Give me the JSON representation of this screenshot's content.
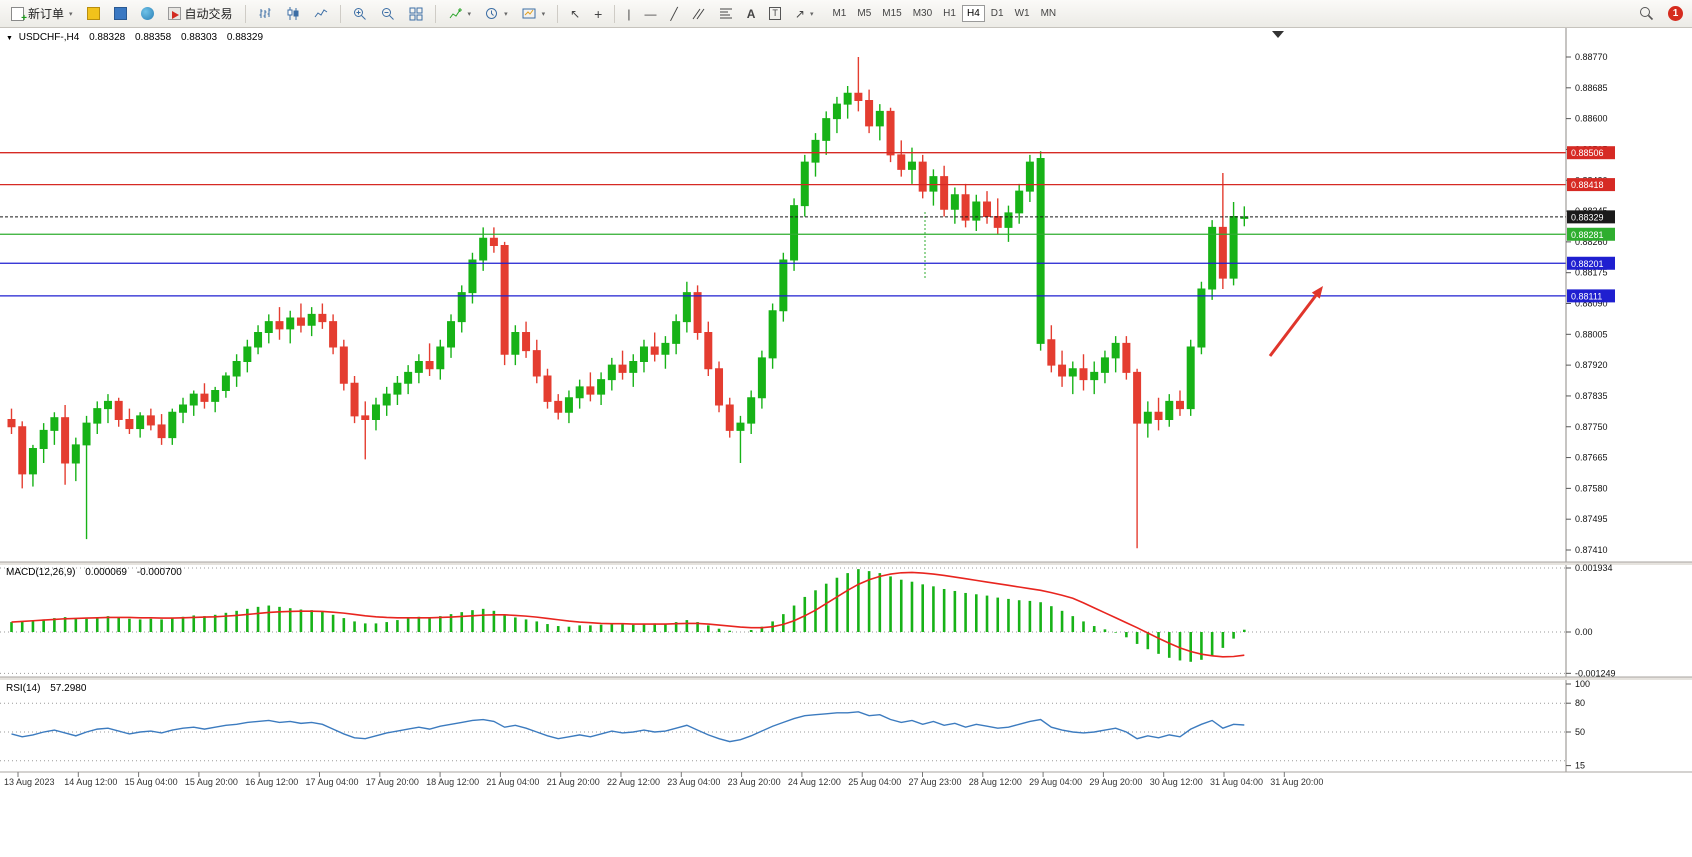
{
  "toolbar": {
    "new_order": {
      "label": "新订单"
    },
    "autotrade": {
      "label": "自动交易"
    },
    "timeframes": {
      "items": [
        "M1",
        "M5",
        "M15",
        "M30",
        "H1",
        "H4",
        "D1",
        "W1",
        "MN"
      ],
      "active": "H4"
    },
    "notification_count": "1"
  },
  "chart_header": {
    "symbol": "USDCHF-,H4",
    "open": "0.88328",
    "high": "0.88358",
    "low": "0.88303",
    "close": "0.88329"
  },
  "price_scale": {
    "ticks": [
      "0.88770",
      "0.88685",
      "0.88600",
      "0.88515",
      "0.88430",
      "0.88345",
      "0.88260",
      "0.88175",
      "0.88090",
      "0.88005",
      "0.87920",
      "0.87835",
      "0.87750",
      "0.87665",
      "0.87580",
      "0.87495",
      "0.87410"
    ]
  },
  "levels": [
    {
      "price": 0.88506,
      "label": "0.88506",
      "color": "#d62a24",
      "kind": "resistance"
    },
    {
      "price": 0.88418,
      "label": "0.88418",
      "color": "#d62a24",
      "kind": "resistance"
    },
    {
      "price": 0.88329,
      "label": "0.88329",
      "color": "#1a1a1a",
      "kind": "current-price"
    },
    {
      "price": 0.88281,
      "label": "0.88281",
      "color": "#2fae2f",
      "kind": "support"
    },
    {
      "price": 0.88201,
      "label": "0.88201",
      "color": "#1f1fd0",
      "kind": "support"
    },
    {
      "price": 0.88111,
      "label": "0.88111",
      "color": "#1f1fd0",
      "kind": "support"
    }
  ],
  "annotation_arrow": {
    "type": "arrow",
    "direction": "up-right",
    "color": "#e0352b"
  },
  "chart_data": {
    "type": "candlestick",
    "symbol": "USDCHF",
    "period": "H4",
    "y_range": [
      0.8741,
      0.8877
    ],
    "up_color": "#17b217",
    "down_color": "#e43d30",
    "x_labels": [
      "13 Aug 2023",
      "14 Aug 12:00",
      "15 Aug 04:00",
      "15 Aug 20:00",
      "16 Aug 12:00",
      "17 Aug 04:00",
      "17 Aug 20:00",
      "18 Aug 12:00",
      "21 Aug 04:00",
      "21 Aug 20:00",
      "22 Aug 12:00",
      "23 Aug 04:00",
      "23 Aug 20:00",
      "24 Aug 12:00",
      "25 Aug 04:00",
      "27 Aug 23:00",
      "28 Aug 12:00",
      "29 Aug 04:00",
      "29 Aug 20:00",
      "30 Aug 12:00",
      "31 Aug 04:00",
      "31 Aug 20:00"
    ],
    "candles": [
      [
        0.8777,
        0.878,
        0.8773,
        0.8775
      ],
      [
        0.8775,
        0.87765,
        0.8758,
        0.8762
      ],
      [
        0.8762,
        0.877,
        0.87585,
        0.8769
      ],
      [
        0.8769,
        0.8776,
        0.8765,
        0.8774
      ],
      [
        0.8774,
        0.8779,
        0.877,
        0.87775
      ],
      [
        0.87775,
        0.8781,
        0.8759,
        0.8765
      ],
      [
        0.8765,
        0.8772,
        0.876,
        0.877
      ],
      [
        0.877,
        0.8778,
        0.8744,
        0.8776
      ],
      [
        0.8776,
        0.8782,
        0.8773,
        0.878
      ],
      [
        0.878,
        0.8784,
        0.8776,
        0.8782
      ],
      [
        0.8782,
        0.8783,
        0.8775,
        0.8777
      ],
      [
        0.8777,
        0.878,
        0.8773,
        0.87745
      ],
      [
        0.87745,
        0.8779,
        0.8772,
        0.8778
      ],
      [
        0.8778,
        0.878,
        0.8774,
        0.87755
      ],
      [
        0.87755,
        0.87785,
        0.877,
        0.8772
      ],
      [
        0.8772,
        0.878,
        0.877,
        0.8779
      ],
      [
        0.8779,
        0.8783,
        0.8776,
        0.8781
      ],
      [
        0.8781,
        0.8785,
        0.8778,
        0.8784
      ],
      [
        0.8784,
        0.8787,
        0.878,
        0.8782
      ],
      [
        0.8782,
        0.8786,
        0.8779,
        0.8785
      ],
      [
        0.8785,
        0.879,
        0.8783,
        0.8789
      ],
      [
        0.8789,
        0.8795,
        0.8786,
        0.8793
      ],
      [
        0.8793,
        0.8799,
        0.879,
        0.8797
      ],
      [
        0.8797,
        0.8803,
        0.8795,
        0.8801
      ],
      [
        0.8801,
        0.8806,
        0.8798,
        0.8804
      ],
      [
        0.8804,
        0.8808,
        0.8799,
        0.8802
      ],
      [
        0.8802,
        0.8807,
        0.8798,
        0.8805
      ],
      [
        0.8805,
        0.8809,
        0.8801,
        0.8803
      ],
      [
        0.8803,
        0.8808,
        0.88,
        0.8806
      ],
      [
        0.8806,
        0.8809,
        0.8802,
        0.8804
      ],
      [
        0.8804,
        0.8806,
        0.8795,
        0.8797
      ],
      [
        0.8797,
        0.8799,
        0.8785,
        0.8787
      ],
      [
        0.8787,
        0.8789,
        0.8776,
        0.8778
      ],
      [
        0.8778,
        0.8782,
        0.8766,
        0.8777
      ],
      [
        0.8777,
        0.8783,
        0.8774,
        0.8781
      ],
      [
        0.8781,
        0.8786,
        0.8778,
        0.8784
      ],
      [
        0.8784,
        0.8789,
        0.8781,
        0.8787
      ],
      [
        0.8787,
        0.8792,
        0.8784,
        0.879
      ],
      [
        0.879,
        0.8795,
        0.8787,
        0.8793
      ],
      [
        0.8793,
        0.8798,
        0.8789,
        0.8791
      ],
      [
        0.8791,
        0.8799,
        0.8788,
        0.8797
      ],
      [
        0.8797,
        0.8806,
        0.8794,
        0.8804
      ],
      [
        0.8804,
        0.8814,
        0.8801,
        0.8812
      ],
      [
        0.8812,
        0.8823,
        0.8809,
        0.8821
      ],
      [
        0.8821,
        0.883,
        0.8818,
        0.8827
      ],
      [
        0.8827,
        0.883,
        0.8823,
        0.8825
      ],
      [
        0.8825,
        0.8826,
        0.8792,
        0.8795
      ],
      [
        0.8795,
        0.8803,
        0.8792,
        0.8801
      ],
      [
        0.8801,
        0.8804,
        0.8794,
        0.8796
      ],
      [
        0.8796,
        0.8799,
        0.8787,
        0.8789
      ],
      [
        0.8789,
        0.8791,
        0.878,
        0.8782
      ],
      [
        0.8782,
        0.8784,
        0.8777,
        0.8779
      ],
      [
        0.8779,
        0.8785,
        0.8776,
        0.8783
      ],
      [
        0.8783,
        0.8788,
        0.878,
        0.8786
      ],
      [
        0.8786,
        0.879,
        0.8782,
        0.8784
      ],
      [
        0.8784,
        0.879,
        0.8781,
        0.8788
      ],
      [
        0.8788,
        0.8794,
        0.8785,
        0.8792
      ],
      [
        0.8792,
        0.8796,
        0.8788,
        0.879
      ],
      [
        0.879,
        0.8795,
        0.8786,
        0.8793
      ],
      [
        0.8793,
        0.8799,
        0.879,
        0.8797
      ],
      [
        0.8797,
        0.8801,
        0.8793,
        0.8795
      ],
      [
        0.8795,
        0.88,
        0.8791,
        0.8798
      ],
      [
        0.8798,
        0.8806,
        0.8795,
        0.8804
      ],
      [
        0.8804,
        0.8815,
        0.8801,
        0.8812
      ],
      [
        0.8812,
        0.8814,
        0.8799,
        0.8801
      ],
      [
        0.8801,
        0.8804,
        0.8789,
        0.8791
      ],
      [
        0.8791,
        0.8793,
        0.8779,
        0.8781
      ],
      [
        0.8781,
        0.8783,
        0.8772,
        0.8774
      ],
      [
        0.8774,
        0.8778,
        0.8765,
        0.8776
      ],
      [
        0.8776,
        0.8785,
        0.8773,
        0.8783
      ],
      [
        0.8783,
        0.8796,
        0.878,
        0.8794
      ],
      [
        0.8794,
        0.8809,
        0.8791,
        0.8807
      ],
      [
        0.8807,
        0.8823,
        0.8804,
        0.8821
      ],
      [
        0.8821,
        0.8838,
        0.8818,
        0.8836
      ],
      [
        0.8836,
        0.885,
        0.8833,
        0.8848
      ],
      [
        0.8848,
        0.8856,
        0.8844,
        0.8854
      ],
      [
        0.8854,
        0.8862,
        0.885,
        0.886
      ],
      [
        0.886,
        0.8866,
        0.8856,
        0.8864
      ],
      [
        0.8864,
        0.8869,
        0.886,
        0.8867
      ],
      [
        0.8867,
        0.8877,
        0.8862,
        0.8865
      ],
      [
        0.8865,
        0.8868,
        0.8856,
        0.8858
      ],
      [
        0.8858,
        0.8864,
        0.8854,
        0.8862
      ],
      [
        0.8862,
        0.8863,
        0.8848,
        0.885
      ],
      [
        0.885,
        0.8854,
        0.8844,
        0.8846
      ],
      [
        0.8846,
        0.8852,
        0.8842,
        0.8848
      ],
      [
        0.8848,
        0.885,
        0.8838,
        0.884
      ],
      [
        0.884,
        0.8846,
        0.8836,
        0.8844
      ],
      [
        0.8844,
        0.8847,
        0.8833,
        0.8835
      ],
      [
        0.8835,
        0.8841,
        0.8831,
        0.8839
      ],
      [
        0.8839,
        0.8842,
        0.883,
        0.8832
      ],
      [
        0.8832,
        0.8839,
        0.8829,
        0.8837
      ],
      [
        0.8837,
        0.884,
        0.8831,
        0.8833
      ],
      [
        0.8833,
        0.8838,
        0.8828,
        0.883
      ],
      [
        0.883,
        0.8836,
        0.8826,
        0.8834
      ],
      [
        0.8834,
        0.8842,
        0.8831,
        0.884
      ],
      [
        0.884,
        0.885,
        0.8837,
        0.8848
      ],
      [
        0.8798,
        0.8851,
        0.8796,
        0.8849
      ],
      [
        0.8799,
        0.8803,
        0.879,
        0.8792
      ],
      [
        0.8792,
        0.8796,
        0.8786,
        0.8789
      ],
      [
        0.8789,
        0.8793,
        0.8784,
        0.8791
      ],
      [
        0.8791,
        0.8795,
        0.8785,
        0.8788
      ],
      [
        0.8788,
        0.8793,
        0.8784,
        0.879
      ],
      [
        0.879,
        0.8796,
        0.8787,
        0.8794
      ],
      [
        0.8794,
        0.88,
        0.879,
        0.8798
      ],
      [
        0.8798,
        0.88,
        0.8788,
        0.879
      ],
      [
        0.879,
        0.8791,
        0.87415,
        0.8776
      ],
      [
        0.8776,
        0.8782,
        0.8772,
        0.8779
      ],
      [
        0.8779,
        0.8783,
        0.8774,
        0.8777
      ],
      [
        0.8777,
        0.8784,
        0.8775,
        0.8782
      ],
      [
        0.8782,
        0.8785,
        0.8778,
        0.878
      ],
      [
        0.878,
        0.8799,
        0.8778,
        0.8797
      ],
      [
        0.8797,
        0.8815,
        0.8795,
        0.8813
      ],
      [
        0.8813,
        0.8832,
        0.881,
        0.883
      ],
      [
        0.883,
        0.8845,
        0.8813,
        0.8816
      ],
      [
        0.8816,
        0.8837,
        0.8814,
        0.8833
      ],
      [
        0.88328,
        0.88358,
        0.88303,
        0.88329
      ]
    ],
    "macd": {
      "label": "MACD(12,26,9)",
      "value_main": "0.000069",
      "value_signal": "-0.000700",
      "scale_ticks": [
        "0.001934",
        "0.00",
        "-0.001249"
      ],
      "unit": 0.0001,
      "histogram_color": "#17b217",
      "signal_color": "#e8251f",
      "histogram": [
        3.0,
        3.2,
        3.5,
        3.8,
        4.2,
        4.5,
        4.2,
        4.0,
        4.4,
        4.8,
        4.4,
        4.0,
        3.8,
        4.0,
        3.8,
        4.2,
        4.6,
        5.0,
        4.8,
        5.2,
        5.8,
        6.4,
        7.0,
        7.6,
        8.0,
        7.6,
        7.2,
        6.8,
        6.6,
        6.2,
        5.2,
        4.2,
        3.2,
        2.6,
        2.6,
        3.0,
        3.6,
        4.2,
        4.6,
        4.2,
        4.8,
        5.4,
        6.0,
        6.6,
        7.0,
        6.4,
        5.2,
        4.4,
        3.8,
        3.2,
        2.4,
        1.8,
        1.6,
        2.0,
        2.0,
        2.2,
        2.6,
        2.4,
        2.2,
        2.4,
        2.6,
        2.4,
        3.0,
        3.6,
        3.0,
        2.0,
        1.0,
        0.4,
        0.0,
        0.6,
        1.6,
        3.2,
        5.4,
        8.0,
        10.6,
        12.6,
        14.6,
        16.4,
        17.8,
        19.0,
        18.4,
        17.8,
        16.8,
        15.8,
        15.2,
        14.4,
        13.8,
        13.0,
        12.4,
        11.8,
        11.4,
        11.0,
        10.4,
        10.0,
        9.6,
        9.4,
        9.0,
        7.8,
        6.4,
        4.8,
        3.2,
        1.8,
        0.8,
        -0.2,
        -1.6,
        -3.6,
        -5.2,
        -6.6,
        -7.8,
        -8.6,
        -9.0,
        -8.4,
        -7.2,
        -4.8,
        -2.0,
        0.69
      ],
      "signal": [
        3.0,
        3.2,
        3.4,
        3.6,
        3.8,
        4.0,
        4.1,
        4.2,
        4.3,
        4.4,
        4.4,
        4.4,
        4.3,
        4.3,
        4.2,
        4.2,
        4.3,
        4.4,
        4.5,
        4.6,
        4.8,
        5.0,
        5.3,
        5.6,
        5.9,
        6.1,
        6.2,
        6.3,
        6.3,
        6.2,
        6.0,
        5.7,
        5.3,
        4.9,
        4.6,
        4.4,
        4.3,
        4.3,
        4.3,
        4.3,
        4.4,
        4.5,
        4.7,
        4.9,
        5.1,
        5.2,
        5.2,
        5.0,
        4.8,
        4.5,
        4.1,
        3.7,
        3.3,
        3.0,
        2.8,
        2.6,
        2.5,
        2.5,
        2.4,
        2.4,
        2.4,
        2.4,
        2.5,
        2.6,
        2.6,
        2.4,
        2.1,
        1.8,
        1.5,
        1.3,
        1.3,
        1.6,
        2.3,
        3.4,
        4.9,
        6.6,
        8.6,
        10.6,
        12.6,
        14.4,
        15.8,
        16.8,
        17.5,
        17.9,
        18.0,
        17.8,
        17.5,
        17.1,
        16.6,
        16.1,
        15.6,
        15.1,
        14.6,
        14.1,
        13.6,
        13.1,
        12.6,
        11.9,
        11.1,
        10.2,
        8.8,
        7.3,
        5.8,
        4.3,
        2.8,
        1.3,
        -0.3,
        -1.9,
        -3.4,
        -4.8,
        -5.9,
        -6.7,
        -7.2,
        -7.5,
        -7.4,
        -7.0
      ]
    },
    "rsi": {
      "label": "RSI(14)",
      "value": "57.2980",
      "scale_ticks": [
        "100",
        "80",
        "50",
        "15"
      ],
      "levels": [
        80,
        50,
        20
      ],
      "line_color": "#3c7bbf",
      "values": [
        48,
        45,
        47,
        50,
        52,
        49,
        46,
        50,
        53,
        54,
        51,
        48,
        50,
        51,
        49,
        52,
        54,
        55,
        53,
        55,
        57,
        58,
        60,
        61,
        62,
        60,
        61,
        59,
        60,
        58,
        53,
        48,
        44,
        43,
        46,
        49,
        51,
        53,
        55,
        53,
        56,
        58,
        60,
        62,
        63,
        61,
        55,
        57,
        54,
        50,
        46,
        43,
        45,
        47,
        45,
        48,
        51,
        49,
        50,
        52,
        50,
        51,
        54,
        57,
        52,
        47,
        43,
        40,
        42,
        46,
        51,
        56,
        60,
        64,
        67,
        68,
        69,
        70,
        70,
        71,
        67,
        68,
        63,
        60,
        62,
        58,
        61,
        57,
        59,
        55,
        58,
        56,
        54,
        55,
        58,
        61,
        63,
        55,
        52,
        50,
        49,
        50,
        52,
        54,
        50,
        43,
        46,
        44,
        47,
        45,
        53,
        58,
        62,
        54,
        58,
        57.3
      ]
    }
  }
}
